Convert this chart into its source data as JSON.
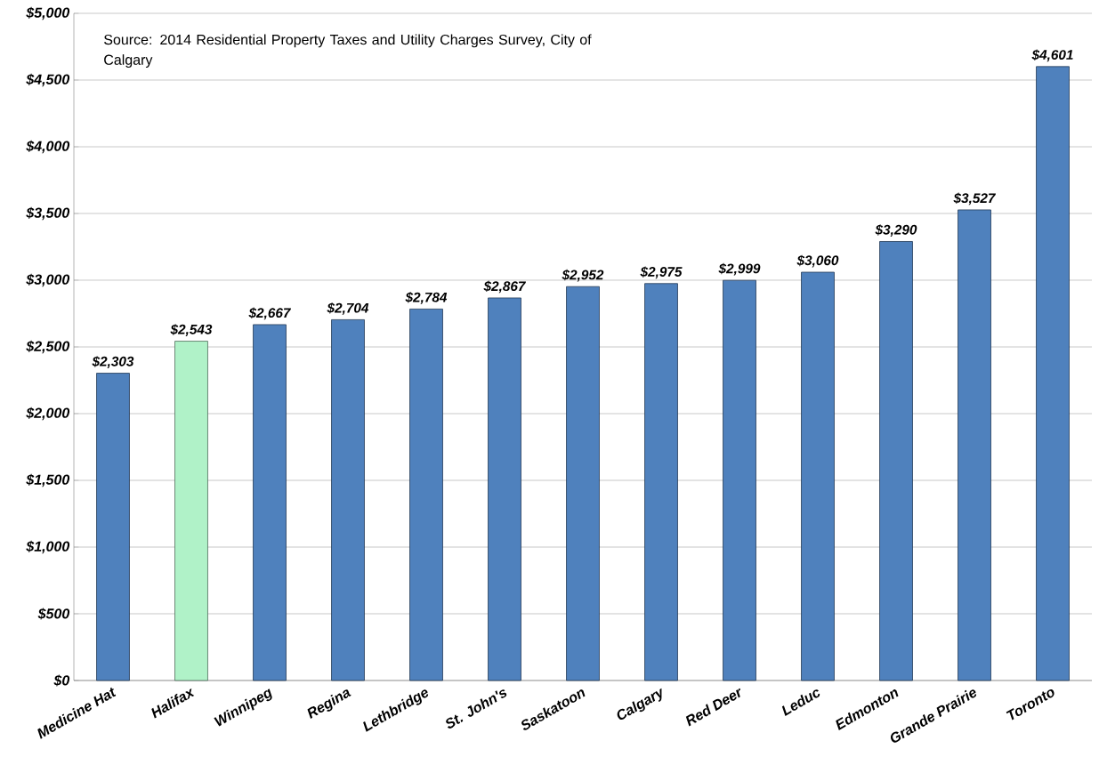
{
  "chart_data": {
    "type": "bar",
    "categories": [
      "Medicine Hat",
      "Halifax",
      "Winnipeg",
      "Regina",
      "Lethbridge",
      "St. John's",
      "Saskatoon",
      "Calgary",
      "Red Deer",
      "Leduc",
      "Edmonton",
      "Grande Prairie",
      "Toronto"
    ],
    "values": [
      2303,
      2543,
      2667,
      2704,
      2784,
      2867,
      2952,
      2975,
      2999,
      3060,
      3290,
      3527,
      4601
    ],
    "value_labels": [
      "$2,303",
      "$2,543",
      "$2,667",
      "$2,704",
      "$2,784",
      "$2,867",
      "$2,952",
      "$2,975",
      "$2,999",
      "$3,060",
      "$3,290",
      "$3,527",
      "$4,601"
    ],
    "colors": [
      "#4f81bd",
      "#b0f2c8",
      "#4f81bd",
      "#4f81bd",
      "#4f81bd",
      "#4f81bd",
      "#4f81bd",
      "#4f81bd",
      "#4f81bd",
      "#4f81bd",
      "#4f81bd",
      "#4f81bd",
      "#4f81bd"
    ],
    "ylim": [
      0,
      5000
    ],
    "yticks": [
      {
        "value": 0,
        "label": "$0"
      },
      {
        "value": 500,
        "label": "$500"
      },
      {
        "value": 1000,
        "label": "$1,000"
      },
      {
        "value": 1500,
        "label": "$1,500"
      },
      {
        "value": 2000,
        "label": "$2,000"
      },
      {
        "value": 2500,
        "label": "$2,500"
      },
      {
        "value": 3000,
        "label": "$3,000"
      },
      {
        "value": 3500,
        "label": "$3,500"
      },
      {
        "value": 4000,
        "label": "$4,000"
      },
      {
        "value": 4500,
        "label": "$4,500"
      },
      {
        "value": 5000,
        "label": "$5,000"
      }
    ],
    "grid": "y",
    "legend": false,
    "annotations": [
      "Source:  2014 Residential Property Taxes and Utility Charges Survey, City of Calgary"
    ]
  }
}
